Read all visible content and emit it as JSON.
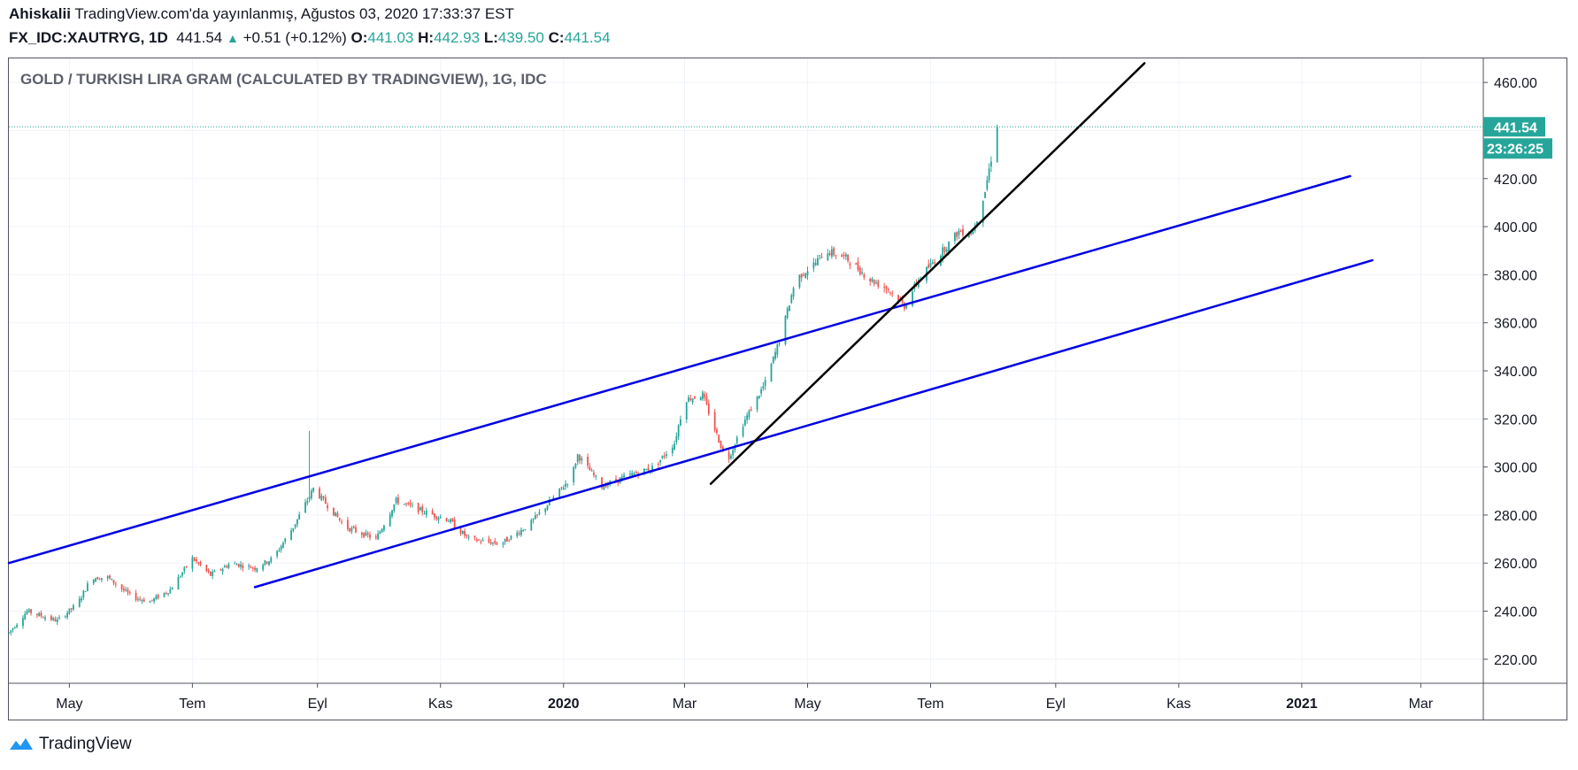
{
  "header": {
    "author": "Ahiskalii",
    "published_text": "TradingView.com'da yayınlanmış, Ağustos 03, 2020 17:33:37 EST",
    "symbol": "FX_IDC:XAUTRYG, 1D",
    "last": "441.54",
    "change": "+0.51 (+0.12%)",
    "open_label": "O:",
    "open": "441.03",
    "high_label": "H:",
    "high": "442.93",
    "low_label": "L:",
    "low": "439.50",
    "close_label": "C:",
    "close": "441.54"
  },
  "footer": {
    "brand": "TradingView"
  },
  "colors": {
    "up": "#26a69a",
    "down": "#ef5350",
    "channel": "#0000e6",
    "trendline": "#000000",
    "price_tag": "#26a69a"
  },
  "chart_data": {
    "type": "candlestick",
    "title": "GOLD / TURKISH LIRA GRAM (CALCULATED BY TRADINGVIEW), 1G, IDC",
    "ylim": [
      210,
      470
    ],
    "y_ticks": [
      "220.00",
      "240.00",
      "260.00",
      "280.00",
      "300.00",
      "320.00",
      "340.00",
      "360.00",
      "380.00",
      "400.00",
      "420.00",
      "440.00",
      "460.00"
    ],
    "x_range": [
      "2019-04-01",
      "2021-04-01"
    ],
    "x_ticks": [
      {
        "date": "2019-05-01",
        "label": "May",
        "bold": false
      },
      {
        "date": "2019-07-01",
        "label": "Tem",
        "bold": false
      },
      {
        "date": "2019-09-01",
        "label": "Eyl",
        "bold": false
      },
      {
        "date": "2019-11-01",
        "label": "Kas",
        "bold": false
      },
      {
        "date": "2020-01-01",
        "label": "2020",
        "bold": true
      },
      {
        "date": "2020-03-01",
        "label": "Mar",
        "bold": false
      },
      {
        "date": "2020-05-01",
        "label": "May",
        "bold": false
      },
      {
        "date": "2020-07-01",
        "label": "Tem",
        "bold": false
      },
      {
        "date": "2020-09-01",
        "label": "Eyl",
        "bold": false
      },
      {
        "date": "2020-11-01",
        "label": "Kas",
        "bold": false
      },
      {
        "date": "2021-01-01",
        "label": "2021",
        "bold": true
      },
      {
        "date": "2021-03-01",
        "label": "Mar",
        "bold": false
      }
    ],
    "series_path": [
      [
        "2019-04-01",
        231
      ],
      [
        "2019-04-10",
        240
      ],
      [
        "2019-04-25",
        236
      ],
      [
        "2019-05-05",
        243
      ],
      [
        "2019-05-12",
        254
      ],
      [
        "2019-05-20",
        254
      ],
      [
        "2019-06-01",
        246
      ],
      [
        "2019-06-10",
        244
      ],
      [
        "2019-06-20",
        249
      ],
      [
        "2019-07-01",
        262
      ],
      [
        "2019-07-10",
        255
      ],
      [
        "2019-07-20",
        260
      ],
      [
        "2019-08-01",
        258
      ],
      [
        "2019-08-10",
        262
      ],
      [
        "2019-08-20",
        275
      ],
      [
        "2019-08-30",
        291
      ],
      [
        "2019-09-05",
        285
      ],
      [
        "2019-09-15",
        275
      ],
      [
        "2019-09-30",
        270
      ],
      [
        "2019-10-05",
        278
      ],
      [
        "2019-10-10",
        286
      ],
      [
        "2019-10-25",
        281
      ],
      [
        "2019-11-05",
        278
      ],
      [
        "2019-11-15",
        270
      ],
      [
        "2019-12-01",
        268
      ],
      [
        "2019-12-15",
        276
      ],
      [
        "2019-12-28",
        288
      ],
      [
        "2020-01-05",
        296
      ],
      [
        "2020-01-08",
        305
      ],
      [
        "2020-01-20",
        292
      ],
      [
        "2020-02-01",
        296
      ],
      [
        "2020-02-15",
        300
      ],
      [
        "2020-02-25",
        310
      ],
      [
        "2020-03-01",
        328
      ],
      [
        "2020-03-10",
        330
      ],
      [
        "2020-03-15",
        318
      ],
      [
        "2020-03-22",
        302
      ],
      [
        "2020-03-30",
        318
      ],
      [
        "2020-04-10",
        335
      ],
      [
        "2020-04-18",
        355
      ],
      [
        "2020-04-25",
        378
      ],
      [
        "2020-05-05",
        385
      ],
      [
        "2020-05-10",
        390
      ],
      [
        "2020-05-20",
        387
      ],
      [
        "2020-06-01",
        378
      ],
      [
        "2020-06-10",
        374
      ],
      [
        "2020-06-18",
        367
      ],
      [
        "2020-06-25",
        378
      ],
      [
        "2020-07-05",
        388
      ],
      [
        "2020-07-15",
        398
      ],
      [
        "2020-07-22",
        398
      ],
      [
        "2020-07-28",
        415
      ],
      [
        "2020-08-03",
        441.54
      ]
    ],
    "annotations": {
      "channel_upper": {
        "from": [
          "2019-04-01",
          260
        ],
        "to": [
          "2021-01-25",
          421
        ]
      },
      "channel_lower": {
        "from": [
          "2019-08-01",
          250
        ],
        "to": [
          "2021-02-05",
          386
        ]
      },
      "trendline": {
        "from": [
          "2020-03-14",
          293
        ],
        "to": [
          "2020-10-15",
          468
        ]
      },
      "spike_high": {
        "date": "2019-08-28",
        "value": 315
      }
    },
    "last_price": "441.54",
    "countdown": "23:26:25"
  }
}
